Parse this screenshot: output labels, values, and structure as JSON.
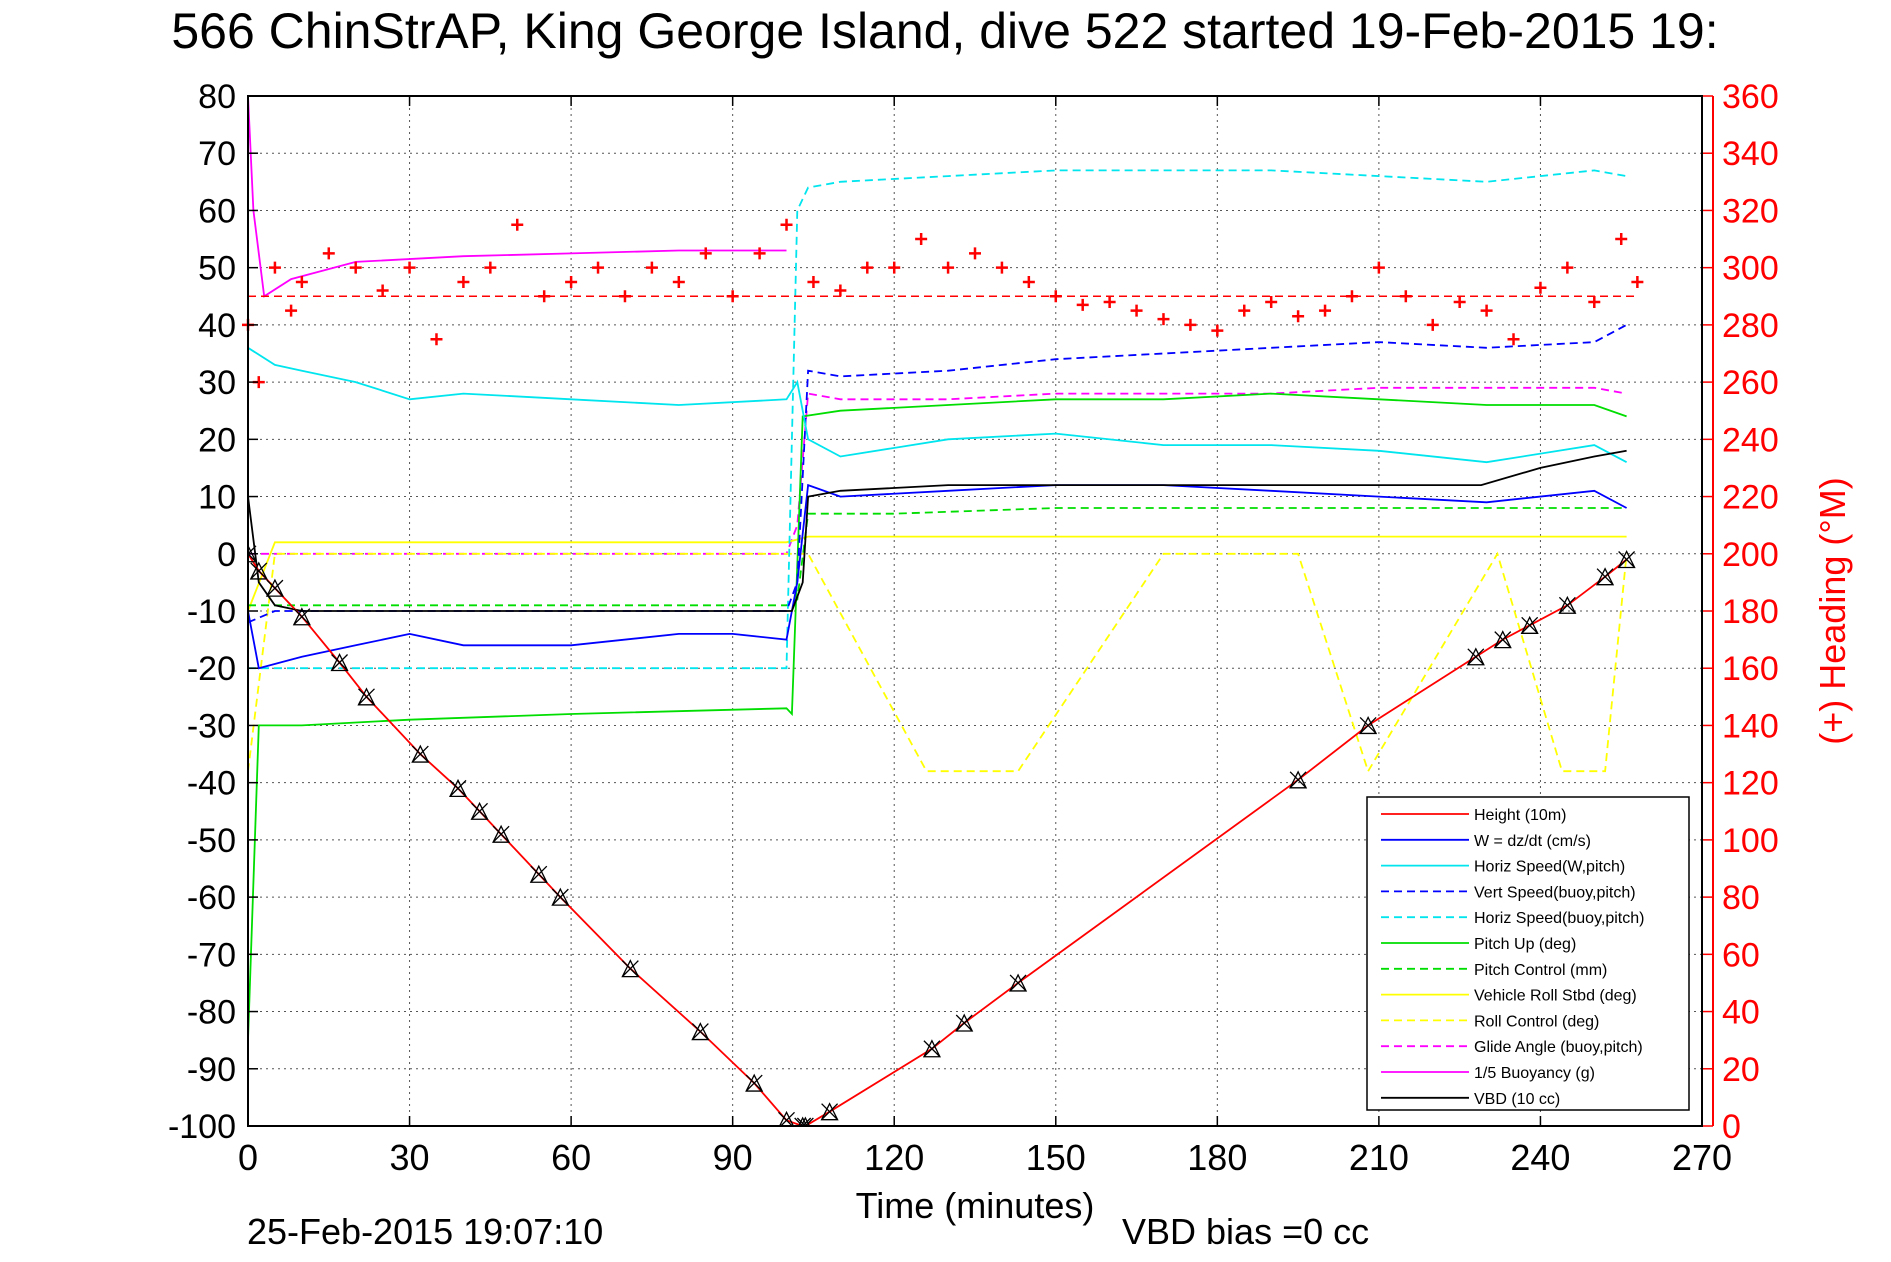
{
  "chart_data": {
    "type": "line",
    "title": "566 ChinStrAP, King George Island, dive 522 started 19-Feb-2015 19:",
    "xlabel": "Time (minutes)",
    "ylabel": "",
    "ylabel_right": "(+) Heading (°M)",
    "xlim": [
      0,
      270
    ],
    "ylim": [
      -100,
      80
    ],
    "ylim_right": [
      0,
      360
    ],
    "x_ticks": [
      "0",
      "30",
      "60",
      "90",
      "120",
      "150",
      "180",
      "210",
      "240",
      "270"
    ],
    "y_ticks": [
      "80",
      "70",
      "60",
      "50",
      "40",
      "30",
      "20",
      "10",
      "0",
      "-10",
      "-20",
      "-30",
      "-40",
      "-50",
      "-60",
      "-70",
      "-80",
      "-90",
      "-100"
    ],
    "y_ticks_right": [
      "360",
      "340",
      "320",
      "300",
      "280",
      "260",
      "240",
      "220",
      "200",
      "180",
      "160",
      "140",
      "120",
      "100",
      "80",
      "60",
      "40",
      "20",
      "0"
    ],
    "grid": true,
    "legend_position": "lower-right",
    "footer_date": "25-Feb-2015 19:07:10",
    "footer_bias": "VBD bias =0 cc",
    "series": [
      {
        "name": "Height (10m)",
        "color": "#ff0000",
        "dash": "solid",
        "marker": "triangle-x",
        "x": [
          0,
          2,
          5,
          10,
          17,
          22,
          32,
          39,
          43,
          47,
          54,
          58,
          71,
          84,
          94,
          100,
          103,
          103.5,
          108,
          127,
          133,
          143,
          195,
          208,
          228,
          233,
          238,
          245,
          252,
          256
        ],
        "y": [
          0,
          -3,
          -6,
          -11,
          -19,
          -25,
          -35,
          -41,
          -45,
          -49,
          -56,
          -60,
          -72.5,
          -83.5,
          -92.5,
          -99,
          -100,
          -100,
          -97.5,
          -86.5,
          -82,
          -75,
          -39.5,
          -30,
          -18,
          -15,
          -12.5,
          -9,
          -4,
          -1
        ]
      },
      {
        "name": "W = dz/dt (cm/s)",
        "color": "#0000ff",
        "dash": "solid",
        "x": [
          0,
          2,
          6,
          10,
          20,
          30,
          40,
          60,
          80,
          90,
          100,
          102,
          104,
          110,
          130,
          150,
          170,
          190,
          210,
          230,
          250,
          256
        ],
        "y": [
          -10,
          -20,
          -19,
          -18,
          -16,
          -14,
          -16,
          -16,
          -14,
          -14,
          -15,
          -5,
          12,
          10,
          11,
          12,
          12,
          11,
          10,
          9,
          11,
          8
        ]
      },
      {
        "name": "Horiz Speed(W,pitch)",
        "color": "#00e5ee",
        "dash": "solid",
        "x": [
          0,
          5,
          10,
          20,
          30,
          40,
          60,
          80,
          100,
          102,
          104,
          110,
          130,
          150,
          170,
          190,
          210,
          230,
          250,
          256
        ],
        "y": [
          36,
          33,
          32,
          30,
          27,
          28,
          27,
          26,
          27,
          30,
          20,
          17,
          20,
          21,
          19,
          19,
          18,
          16,
          19,
          16
        ]
      },
      {
        "name": "Vert Speed(buoy,pitch)",
        "color": "#0000ff",
        "dash": "dashed",
        "x": [
          0,
          5,
          30,
          60,
          100,
          102,
          104,
          110,
          130,
          150,
          170,
          190,
          210,
          230,
          250,
          256
        ],
        "y": [
          -12,
          -10,
          -10,
          -10,
          -10,
          -5,
          32,
          31,
          32,
          34,
          35,
          36,
          37,
          36,
          37,
          40
        ]
      },
      {
        "name": "Horiz Speed(buoy,pitch)",
        "color": "#00e5ee",
        "dash": "dashed",
        "x": [
          0,
          5,
          30,
          60,
          100,
          102,
          104,
          110,
          130,
          150,
          170,
          190,
          210,
          230,
          250,
          256
        ],
        "y": [
          -20,
          -20,
          -20,
          -20,
          -20,
          60,
          64,
          65,
          66,
          67,
          67,
          67,
          66,
          65,
          67,
          66
        ]
      },
      {
        "name": "Pitch Up (deg)",
        "color": "#00dd00",
        "dash": "solid",
        "x": [
          0,
          2,
          10,
          30,
          60,
          100,
          101,
          103,
          110,
          130,
          150,
          170,
          190,
          210,
          230,
          250,
          256
        ],
        "y": [
          -85,
          -30,
          -30,
          -29,
          -28,
          -27,
          -28,
          24,
          25,
          26,
          27,
          27,
          28,
          27,
          26,
          26,
          24
        ]
      },
      {
        "name": "Pitch Control (mm)",
        "color": "#00dd00",
        "dash": "dashed",
        "x": [
          0,
          3,
          10,
          30,
          60,
          100,
          102,
          104,
          120,
          150,
          180,
          210,
          240,
          256
        ],
        "y": [
          -9,
          -9,
          -9,
          -9,
          -9,
          -9,
          -8,
          7,
          7,
          8,
          8,
          8,
          8,
          8
        ]
      },
      {
        "name": "Vehicle Roll Stbd (deg)",
        "color": "#ffff00",
        "dash": "solid",
        "x": [
          0,
          5,
          30,
          60,
          90,
          100,
          104,
          130,
          160,
          190,
          210,
          230,
          250,
          256
        ],
        "y": [
          -10,
          2,
          2,
          2,
          2,
          2,
          3,
          3,
          3,
          3,
          3,
          3,
          3,
          3
        ]
      },
      {
        "name": "Roll Control (deg)",
        "color": "#ffff00",
        "dash": "dashed",
        "x": [
          0,
          5,
          30,
          60,
          100,
          104,
          126,
          134,
          143,
          170,
          181,
          195,
          208,
          232,
          244,
          252,
          256
        ],
        "y": [
          -38,
          0,
          0,
          0,
          0,
          0,
          -38,
          -38,
          -38,
          0,
          0,
          0,
          -38,
          0,
          -38,
          -38,
          0
        ]
      },
      {
        "name": "Glide Angle (buoy,pitch)",
        "color": "#ff00ff",
        "dash": "dashed",
        "x": [
          0,
          5,
          30,
          60,
          100,
          102,
          104,
          110,
          130,
          150,
          170,
          190,
          210,
          230,
          250,
          256
        ],
        "y": [
          0,
          0,
          0,
          0,
          0,
          5,
          28,
          27,
          27,
          28,
          28,
          28,
          29,
          29,
          29,
          28
        ]
      },
      {
        "name": "1/5 Buoyancy (g)",
        "color": "#ff00ff",
        "dash": "solid",
        "x": [
          0,
          1,
          3,
          8,
          20,
          40,
          60,
          80,
          100
        ],
        "y": [
          80,
          60,
          45,
          48,
          51,
          52,
          52.5,
          53,
          53
        ]
      },
      {
        "name": "VBD (10 cc)",
        "color": "#000000",
        "dash": "solid",
        "x": [
          0,
          2,
          5,
          10,
          30,
          60,
          90,
          101,
          103,
          104,
          110,
          130,
          150,
          170,
          190,
          210,
          228,
          229,
          240,
          250,
          256
        ],
        "y": [
          10,
          -5,
          -9,
          -10,
          -10,
          -10,
          -10,
          -10,
          -5,
          10,
          11,
          12,
          12,
          12,
          12,
          12,
          12,
          12,
          15,
          17,
          18
        ]
      }
    ],
    "heading_series": {
      "name": "(+) Heading (°M)",
      "color": "#ff0000",
      "marker": "+",
      "mean": 290,
      "x": [
        0,
        2,
        5,
        8,
        10,
        15,
        20,
        25,
        30,
        35,
        40,
        45,
        50,
        55,
        60,
        65,
        70,
        75,
        80,
        85,
        90,
        95,
        100,
        105,
        110,
        115,
        120,
        125,
        130,
        135,
        140,
        145,
        150,
        155,
        160,
        165,
        170,
        175,
        180,
        185,
        190,
        195,
        200,
        205,
        210,
        215,
        220,
        225,
        230,
        235,
        240,
        245,
        250,
        255,
        258
      ],
      "y": [
        280,
        260,
        300,
        285,
        295,
        305,
        300,
        292,
        300,
        275,
        295,
        300,
        315,
        290,
        295,
        300,
        290,
        300,
        295,
        305,
        290,
        305,
        315,
        295,
        292,
        300,
        300,
        310,
        300,
        305,
        300,
        295,
        290,
        287,
        288,
        285,
        282,
        280,
        278,
        285,
        288,
        283,
        285,
        290,
        300,
        290,
        280,
        288,
        285,
        275,
        293,
        300,
        288,
        310,
        295
      ]
    }
  }
}
